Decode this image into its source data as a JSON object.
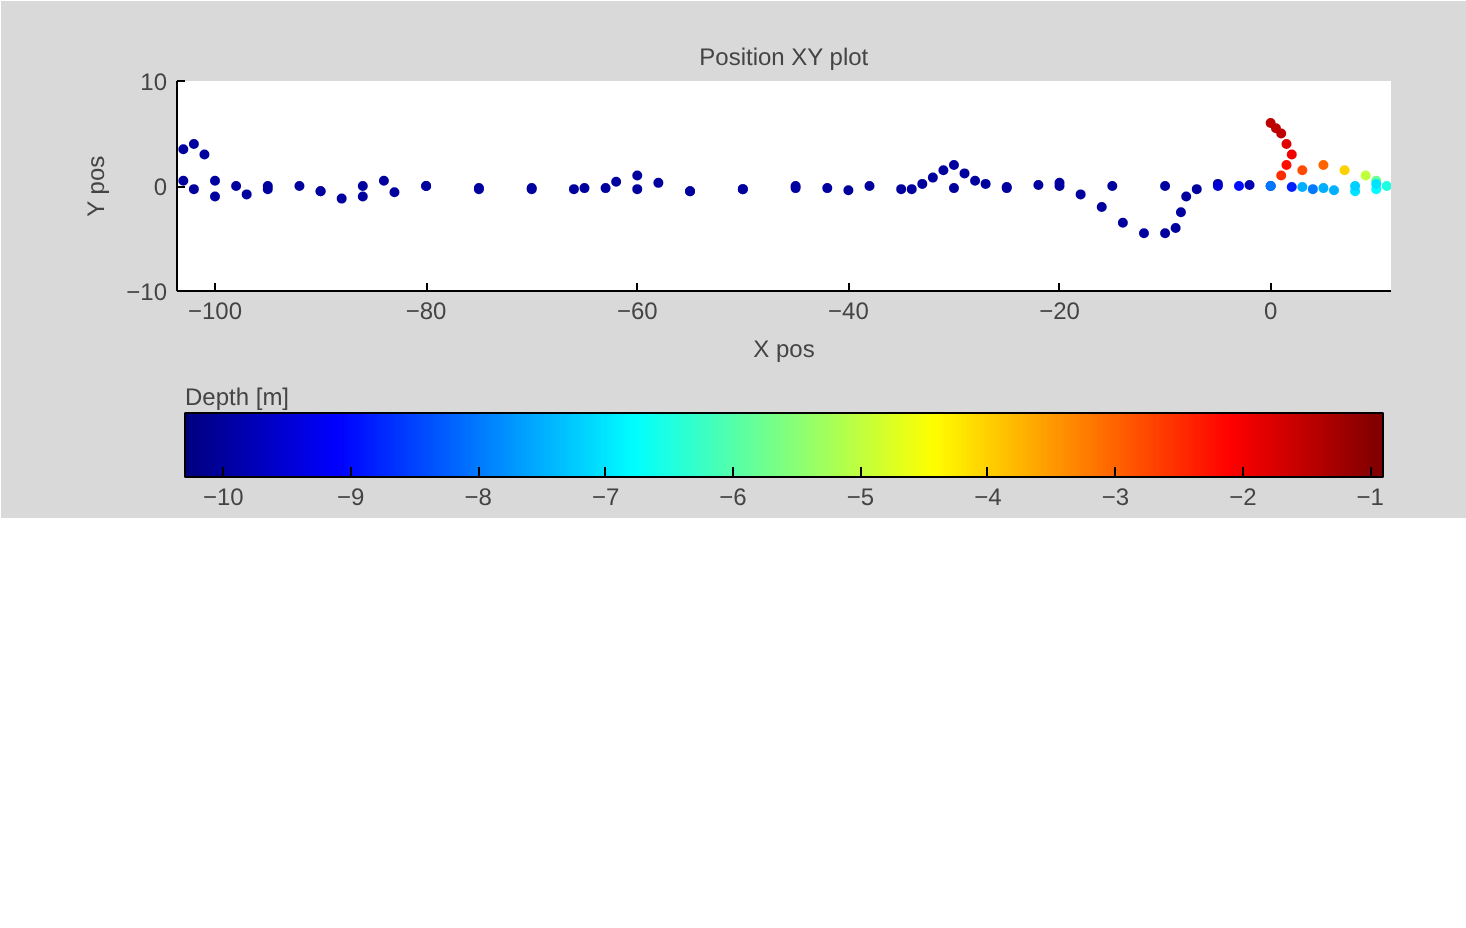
{
  "chart_data": {
    "type": "scatter",
    "title": "Position XY plot",
    "xlabel": "X pos",
    "ylabel": "Y pos",
    "clabel": "Depth [m]",
    "marker": "circle",
    "xlim": [
      -103.6,
      11.4
    ],
    "ylim": [
      -10,
      10
    ],
    "xticks": [
      -100,
      -80,
      -60,
      -40,
      -20,
      0
    ],
    "yticks": [
      -10,
      0,
      10
    ],
    "clim": [
      -10.3,
      -0.9
    ],
    "cticks": [
      -10,
      -9,
      -8,
      -7,
      -6,
      -5,
      -4,
      -3,
      -2,
      -1
    ],
    "grid": false,
    "series": [
      {
        "x": [
          0,
          0.5,
          1,
          1.5,
          2,
          1.5,
          1,
          3,
          5,
          7,
          9,
          10,
          11,
          10,
          8,
          6,
          4,
          2,
          0,
          -2,
          -5,
          -7,
          -8,
          -8.5,
          -9,
          -10,
          -12,
          -14,
          -16,
          -18,
          -20,
          -22,
          -25,
          -27,
          -28,
          -29,
          -30,
          -31,
          -32,
          -33,
          -34,
          -38,
          -42,
          -45,
          -50,
          -55,
          -58,
          -60,
          -62,
          -63,
          -66,
          -70,
          -75,
          -80,
          -84,
          -86,
          -88,
          -90,
          -92,
          -95,
          -98,
          -100,
          -101,
          -102,
          -103,
          -103,
          -102,
          -100,
          -97,
          -95,
          -90,
          -86,
          -83,
          -80,
          -75,
          -70,
          -65,
          -60,
          -55,
          -50,
          -45,
          -40,
          -35,
          -30,
          -25,
          -20,
          -15,
          -10,
          -5,
          -3,
          0,
          3,
          5,
          8,
          10
        ],
        "values": [
          6,
          5.5,
          5,
          4,
          3,
          2,
          1,
          1.5,
          2,
          1.5,
          1,
          0.5,
          0,
          -0.3,
          -0.5,
          -0.4,
          -0.3,
          -0.1,
          0,
          0.1,
          0.2,
          -0.3,
          -1,
          -2.5,
          -4,
          -4.5,
          -4.5,
          -3.5,
          -2,
          -0.8,
          0.3,
          0.1,
          -0.2,
          0.2,
          0.5,
          1.2,
          2,
          1.5,
          0.8,
          0.2,
          -0.3,
          0,
          -0.2,
          0,
          -0.3,
          -0.5,
          0.3,
          1,
          0.4,
          -0.2,
          -0.3,
          -0.2,
          -0.3,
          0,
          0.5,
          0,
          -1.2,
          -0.5,
          0,
          0,
          0,
          0.5,
          3,
          4,
          3.5,
          0.5,
          -0.3,
          -1,
          -0.8,
          -0.3,
          -0.5,
          -1,
          -0.6,
          0,
          -0.2,
          -0.3,
          -0.2,
          -0.3,
          -0.5,
          -0.3,
          -0.2,
          -0.4,
          -0.3,
          -0.2,
          -0.1,
          0,
          0,
          0,
          0,
          0,
          0,
          -0.1,
          -0.2,
          0,
          0.2
        ],
        "cvalues": [
          -1.5,
          -1.5,
          -1.5,
          -1.8,
          -2,
          -2.2,
          -2.5,
          -2.8,
          -3,
          -4,
          -5,
          -5.8,
          -6.5,
          -6.8,
          -7,
          -7.5,
          -8,
          -8.8,
          -9.5,
          -9.8,
          -10,
          -10,
          -10,
          -10,
          -10,
          -10,
          -10,
          -10,
          -10,
          -10,
          -10,
          -10,
          -10,
          -10,
          -10,
          -10,
          -10,
          -10,
          -10,
          -10,
          -10,
          -10,
          -10,
          -10,
          -10,
          -10,
          -10,
          -10,
          -10,
          -10,
          -10,
          -10,
          -10,
          -10,
          -10,
          -10,
          -10,
          -10,
          -10,
          -10,
          -10,
          -10,
          -10,
          -10,
          -10,
          -10,
          -10,
          -10,
          -10,
          -10,
          -10,
          -10,
          -10,
          -10,
          -10,
          -10,
          -10,
          -10,
          -10,
          -10,
          -10,
          -10,
          -10,
          -10,
          -10,
          -10,
          -10,
          -10,
          -9.5,
          -9,
          -8,
          -7.5,
          -7.5,
          -7.2,
          -7
        ]
      }
    ]
  }
}
